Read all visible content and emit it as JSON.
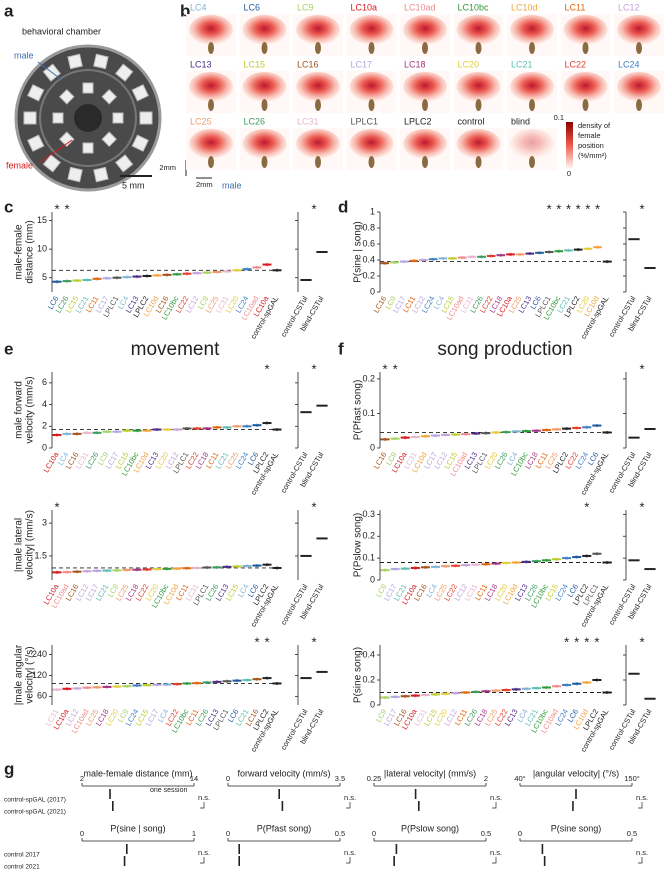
{
  "colors": {
    "LC4": "#7fb3d5",
    "LC6": "#1f5a9e",
    "LC9": "#a6d25f",
    "LC10a": "#d7191c",
    "LC10ad": "#f08a8a",
    "LC10bc": "#2f9a3a",
    "LC10d": "#f3a33b",
    "LC11": "#e0660f",
    "LC12": "#c3a3db",
    "LC13": "#4b2a86",
    "LC15": "#bccc2a",
    "LC16": "#a35318",
    "LC17": "#b3a6e3",
    "LC18": "#a3367f",
    "LC20": "#e3cc3a",
    "LC21": "#5cbfb0",
    "LC22": "#e2402c",
    "LC24": "#3f7fc2",
    "LC25": "#f09a6a",
    "LC26": "#3c9b5c",
    "LC31": "#e8b4cf",
    "LPLC1": "#555555",
    "LPLC2": "#222222",
    "control-spGAL": "#222222",
    "control": "#222222",
    "blind": "#222222",
    "control-CSTul": "#222222",
    "blind-CSTul": "#222222"
  },
  "a": {
    "letter": "a",
    "title": "behavioral chamber",
    "male": "male",
    "female": "female",
    "scale": "5 mm"
  },
  "b": {
    "letter": "b",
    "rows": [
      [
        "LC4",
        "LC6",
        "LC9",
        "LC10a",
        "LC10ad",
        "LC10bc",
        "LC10d",
        "LC11",
        "LC12"
      ],
      [
        "LC13",
        "LC15",
        "LC16",
        "LC17",
        "LC18",
        "LC20",
        "LC21",
        "LC22",
        "LC24"
      ],
      [
        "LC25",
        "LC26",
        "LC31",
        "LPLC1",
        "LPLC2",
        "control",
        "blind"
      ]
    ],
    "colorbar": {
      "max": 0.1,
      "min": 0,
      "label": [
        "density of",
        "female",
        "position",
        "(%/mm²)"
      ]
    },
    "scale_v": "2mm",
    "scale_h": "2mm",
    "male": "male"
  },
  "c": {
    "letter": "c",
    "ylabel": [
      "male-female",
      "distance (mm)"
    ],
    "ylim": [
      2.5,
      16.5
    ],
    "yticks": [
      5,
      10,
      15
    ],
    "control_line": 6.3,
    "categories": [
      "LC6",
      "LC26",
      "LC15",
      "LC21",
      "LC11",
      "LC17",
      "LPLC1",
      "LC4",
      "LC13",
      "LPLC2",
      "LC10d",
      "LC16",
      "LC10bc",
      "LC22",
      "LC12",
      "LC9",
      "LC25",
      "LC31",
      "LC20",
      "LC24",
      "LC10ad",
      "LC10a",
      "control-spGAL"
    ],
    "means": [
      4.3,
      4.4,
      4.5,
      4.6,
      4.8,
      4.9,
      5.0,
      5.1,
      5.2,
      5.3,
      5.4,
      5.5,
      5.6,
      5.7,
      5.8,
      5.9,
      6.0,
      6.1,
      6.3,
      6.5,
      6.8,
      7.3,
      6.3
    ],
    "stars": [
      {
        "label": "*",
        "category": "LC6"
      },
      {
        "label": "*",
        "category": "LC26"
      }
    ],
    "mini": {
      "categories": [
        "control-CSTul",
        "blind-CSTul"
      ],
      "values": [
        4.6,
        9.5
      ],
      "star": "*"
    }
  },
  "d": {
    "letter": "d",
    "ylabel": [
      "P(sine | song)"
    ],
    "ylim": [
      0,
      1
    ],
    "yticks": [
      0,
      0.2,
      0.4,
      0.6,
      0.8,
      1
    ],
    "control_line": 0.38,
    "categories": [
      "LC16",
      "LC9",
      "LC17",
      "LC11",
      "LC12",
      "LC24",
      "LC4",
      "LC15",
      "LC10ad",
      "LC31",
      "LC26",
      "LC22",
      "LC18",
      "LC10a",
      "LC25",
      "LC13",
      "LC6",
      "LPLC1",
      "LC10bc",
      "LC21",
      "LPLC2",
      "LC20",
      "LC10d",
      "control-spGAL"
    ],
    "means": [
      0.36,
      0.37,
      0.38,
      0.39,
      0.4,
      0.41,
      0.42,
      0.42,
      0.43,
      0.44,
      0.44,
      0.45,
      0.46,
      0.47,
      0.47,
      0.48,
      0.49,
      0.5,
      0.51,
      0.52,
      0.53,
      0.54,
      0.56,
      0.38
    ],
    "stars": [
      {
        "label": "*",
        "category": "LPLC1"
      },
      {
        "label": "*",
        "category": "LC10bc"
      },
      {
        "label": "*",
        "category": "LC21"
      },
      {
        "label": "*",
        "category": "LPLC2"
      },
      {
        "label": "*",
        "category": "LC20"
      },
      {
        "label": "*",
        "category": "LC10d"
      }
    ],
    "mini": {
      "categories": [
        "control-CSTul",
        "blind-CSTul"
      ],
      "values": [
        0.66,
        0.3
      ],
      "star": "*"
    }
  },
  "e": {
    "letter": "e",
    "title": "movement",
    "plots": [
      {
        "ylabel": [
          "male forward",
          "velocity (mm/s)"
        ],
        "ylim": [
          0,
          7
        ],
        "yticks": [
          0,
          2,
          4,
          6
        ],
        "control_line": 1.7,
        "categories": [
          "LC10a",
          "LC4",
          "LC16",
          "LC31",
          "LC26",
          "LC9",
          "LC17",
          "LC15",
          "LC10bc",
          "LC10d",
          "LC13",
          "LC20",
          "LC12",
          "LPLC1",
          "LC22",
          "LC18",
          "LC11",
          "LC21",
          "LC25",
          "LC24",
          "LC6",
          "LPLC2",
          "control-spGAL"
        ],
        "means": [
          1.2,
          1.3,
          1.3,
          1.4,
          1.4,
          1.5,
          1.5,
          1.6,
          1.6,
          1.6,
          1.7,
          1.7,
          1.7,
          1.8,
          1.8,
          1.8,
          1.9,
          1.9,
          2.0,
          2.0,
          2.1,
          2.3,
          1.7
        ],
        "stars": [
          {
            "label": "*",
            "category": "LPLC2"
          }
        ],
        "mini": {
          "categories": [
            "control-CSTul",
            "blind-CSTul"
          ],
          "values": [
            3.3,
            3.9
          ],
          "star": "*"
        }
      },
      {
        "ylabel": [
          "|male lateral",
          "velocity| (mm/s)"
        ],
        "ylim": [
          0.4,
          3.6
        ],
        "yticks": [
          1.5,
          3
        ],
        "control_line": 0.95,
        "categories": [
          "LC10a",
          "LC10ad",
          "LC16",
          "LC12",
          "LC17",
          "LC21",
          "LC9",
          "LC25",
          "LC18",
          "LC22",
          "LC20",
          "LC10bc",
          "LC10d",
          "LC11",
          "LC31",
          "LPLC1",
          "LC26",
          "LC13",
          "LC15",
          "LC4",
          "LC6",
          "LPLC2",
          "control-spGAL"
        ],
        "means": [
          0.75,
          0.76,
          0.78,
          0.8,
          0.82,
          0.83,
          0.84,
          0.86,
          0.87,
          0.88,
          0.9,
          0.91,
          0.92,
          0.94,
          0.95,
          0.97,
          0.98,
          1.0,
          1.02,
          1.04,
          1.06,
          1.1,
          0.95
        ],
        "stars": [
          {
            "label": "*",
            "category": "LC10a"
          }
        ],
        "mini": {
          "categories": [
            "control-CSTul",
            "blind-CSTul"
          ],
          "values": [
            1.5,
            2.3
          ],
          "star": "*"
        }
      },
      {
        "ylabel": [
          "|male angular",
          "velocity| (°/s)"
        ],
        "log": true,
        "ylim": [
          45,
          330
        ],
        "yticks": [
          {
            "value": 60,
            "label": "60"
          },
          {
            "value": 120,
            "label": "120"
          },
          {
            "value": 240,
            "label": "240"
          }
        ],
        "control_line": 92,
        "categories": [
          "LC31",
          "LC10a",
          "LC12",
          "LC10ad",
          "LC25",
          "LC18",
          "LC20",
          "LC9",
          "LC24",
          "LC15",
          "LC17",
          "LC4",
          "LC22",
          "LC10bc",
          "LC11",
          "LC26",
          "LC13",
          "LPLC1",
          "LC6",
          "LC21",
          "LC16",
          "LPLC2",
          "control-spGAL"
        ],
        "means": [
          75,
          77,
          78,
          80,
          81,
          82,
          83,
          84,
          86,
          87,
          88,
          89,
          90,
          92,
          93,
          95,
          97,
          99,
          101,
          103,
          106,
          110,
          92
        ],
        "stars": [
          {
            "label": "*",
            "category": "LC16"
          },
          {
            "label": "*",
            "category": "LPLC2"
          }
        ],
        "mini": {
          "categories": [
            "control-CSTul",
            "blind-CSTul"
          ],
          "values": [
            110,
            135
          ],
          "star": "*"
        }
      }
    ]
  },
  "f": {
    "letter": "f",
    "title": "song production",
    "plots": [
      {
        "ylabel": [
          "P(Pfast song)"
        ],
        "ylim": [
          0,
          0.22
        ],
        "yticks": [
          0,
          0.1,
          0.2
        ],
        "control_line": 0.045,
        "categories": [
          "LC16",
          "LC9",
          "LC10a",
          "LC31",
          "LC10d",
          "LC17",
          "LC12",
          "LC15",
          "LC10ad",
          "LC13",
          "LPLC1",
          "LC20",
          "LC26",
          "LC4",
          "LC10bc",
          "LC18",
          "LC11",
          "LC25",
          "LPLC2",
          "LC22",
          "LC24",
          "LC6",
          "control-spGAL"
        ],
        "means": [
          0.025,
          0.027,
          0.03,
          0.032,
          0.034,
          0.036,
          0.038,
          0.039,
          0.04,
          0.042,
          0.043,
          0.045,
          0.046,
          0.048,
          0.049,
          0.05,
          0.052,
          0.054,
          0.056,
          0.058,
          0.06,
          0.065,
          0.045
        ],
        "stars": [
          {
            "label": "*",
            "category": "LC16"
          },
          {
            "label": "*",
            "category": "LC9"
          }
        ],
        "mini": {
          "categories": [
            "control-CSTul",
            "blind-CSTul"
          ],
          "values": [
            0.03,
            0.055
          ],
          "star": "*"
        }
      },
      {
        "ylabel": [
          "P(Pslow song)"
        ],
        "ylim": [
          0,
          0.32
        ],
        "yticks": [
          0,
          0.1,
          0.2,
          0.3
        ],
        "control_line": 0.08,
        "categories": [
          "LC9",
          "LC17",
          "LC21",
          "LC10a",
          "LC16",
          "LC4",
          "LC25",
          "LC22",
          "LC12",
          "LC31",
          "LC11",
          "LC18",
          "LC20",
          "LC10d",
          "LC13",
          "LC26",
          "LC10bc",
          "LC15",
          "LC24",
          "LC6",
          "LPLC2",
          "LPLC1",
          "control-spGAL"
        ],
        "means": [
          0.045,
          0.05,
          0.052,
          0.055,
          0.058,
          0.06,
          0.063,
          0.065,
          0.068,
          0.07,
          0.072,
          0.075,
          0.078,
          0.08,
          0.083,
          0.086,
          0.09,
          0.095,
          0.1,
          0.105,
          0.11,
          0.12,
          0.08
        ],
        "stars": [
          {
            "label": "*",
            "category": "LPLC2"
          }
        ],
        "mini": {
          "categories": [
            "control-CSTul",
            "blind-CSTul"
          ],
          "values": [
            0.09,
            0.05
          ],
          "star": "*"
        }
      },
      {
        "ylabel": [
          "P(sine song)"
        ],
        "ylim": [
          0,
          0.48
        ],
        "yticks": [
          0,
          0.2,
          0.4
        ],
        "control_line": 0.1,
        "categories": [
          "LC9",
          "LC17",
          "LC16",
          "LC10a",
          "LC31",
          "LC15",
          "LC20",
          "LC12",
          "LC11",
          "LC26",
          "LC18",
          "LC25",
          "LC22",
          "LC13",
          "LC4",
          "LC21",
          "LC10bc",
          "LC10ad",
          "LC24",
          "LC6",
          "LC10d",
          "LPLC2",
          "control-spGAL"
        ],
        "means": [
          0.06,
          0.065,
          0.07,
          0.075,
          0.08,
          0.085,
          0.09,
          0.095,
          0.1,
          0.105,
          0.11,
          0.115,
          0.12,
          0.125,
          0.13,
          0.135,
          0.14,
          0.15,
          0.16,
          0.17,
          0.18,
          0.2,
          0.1
        ],
        "stars": [
          {
            "label": "*",
            "category": "LC24"
          },
          {
            "label": "*",
            "category": "LC6"
          },
          {
            "label": "*",
            "category": "LC10d"
          },
          {
            "label": "*",
            "category": "LPLC2"
          }
        ],
        "mini": {
          "categories": [
            "control-CSTul",
            "blind-CSTul"
          ],
          "values": [
            0.25,
            0.05
          ],
          "star": "*"
        }
      }
    ]
  },
  "g": {
    "letter": "g",
    "note": "one session",
    "ns": "n.s.",
    "row_labels": [
      [
        "control-spGAL (2017)",
        "control-spGAL (2021)"
      ],
      [
        "control 2017",
        "control 2021"
      ]
    ],
    "plots": [
      {
        "title": "male-female distance (mm)",
        "xlim": [
          2,
          14
        ],
        "xticks": [
          2,
          14
        ],
        "values": [
          5.0,
          5.3
        ]
      },
      {
        "title": "forward velocity (mm/s)",
        "xlim": [
          0,
          3.5
        ],
        "xticks": [
          0,
          3.5
        ],
        "values": [
          1.6,
          1.7
        ]
      },
      {
        "title": "|lateral velocity| (mm/s)",
        "xlim": [
          0.25,
          2
        ],
        "xticks": [
          0.25,
          2
        ],
        "values": [
          0.9,
          0.95
        ]
      },
      {
        "title": "|angular velocity| (°/s)",
        "xlim": [
          40,
          150
        ],
        "xticks": [
          {
            "value": 40,
            "label": "40°"
          },
          {
            "value": 150,
            "label": "150°"
          }
        ],
        "values": [
          95,
          92
        ]
      },
      {
        "title": "P(sine | song)",
        "xlim": [
          0,
          1
        ],
        "xticks": [
          0,
          1
        ],
        "values": [
          0.4,
          0.38
        ]
      },
      {
        "title": "P(Pfast song)",
        "xlim": [
          0,
          0.5
        ],
        "xticks": [
          0,
          0.5
        ],
        "values": [
          0.05,
          0.05
        ]
      },
      {
        "title": "P(Pslow song)",
        "xlim": [
          0,
          0.5
        ],
        "xticks": [
          0,
          0.5
        ],
        "values": [
          0.1,
          0.09
        ]
      },
      {
        "title": "P(sine song)",
        "xlim": [
          0,
          0.5
        ],
        "xticks": [
          0,
          0.5
        ],
        "values": [
          0.1,
          0.11
        ]
      }
    ]
  }
}
